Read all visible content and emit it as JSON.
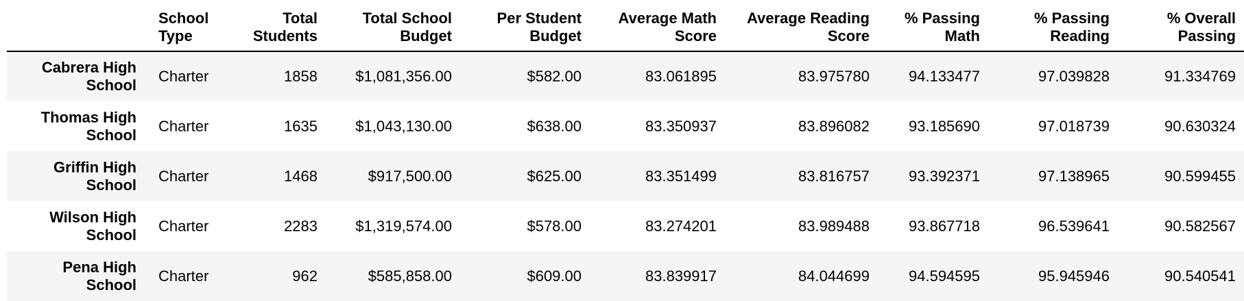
{
  "table": {
    "columns": [
      "School Type",
      "Total Students",
      "Total School Budget",
      "Per Student Budget",
      "Average Math Score",
      "Average Reading Score",
      "% Passing Math",
      "% Passing Reading",
      "% Overall Passing"
    ],
    "rows": [
      {
        "school": "Cabrera High School",
        "school_type": "Charter",
        "total_students": "1858",
        "total_budget": "$1,081,356.00",
        "per_student_budget": "$582.00",
        "avg_math": "83.061895",
        "avg_reading": "83.975780",
        "pct_math": "94.133477",
        "pct_reading": "97.039828",
        "pct_overall": "91.334769"
      },
      {
        "school": "Thomas High School",
        "school_type": "Charter",
        "total_students": "1635",
        "total_budget": "$1,043,130.00",
        "per_student_budget": "$638.00",
        "avg_math": "83.350937",
        "avg_reading": "83.896082",
        "pct_math": "93.185690",
        "pct_reading": "97.018739",
        "pct_overall": "90.630324"
      },
      {
        "school": "Griffin High School",
        "school_type": "Charter",
        "total_students": "1468",
        "total_budget": "$917,500.00",
        "per_student_budget": "$625.00",
        "avg_math": "83.351499",
        "avg_reading": "83.816757",
        "pct_math": "93.392371",
        "pct_reading": "97.138965",
        "pct_overall": "90.599455"
      },
      {
        "school": "Wilson High School",
        "school_type": "Charter",
        "total_students": "2283",
        "total_budget": "$1,319,574.00",
        "per_student_budget": "$578.00",
        "avg_math": "83.274201",
        "avg_reading": "83.989488",
        "pct_math": "93.867718",
        "pct_reading": "96.539641",
        "pct_overall": "90.582567"
      },
      {
        "school": "Pena High School",
        "school_type": "Charter",
        "total_students": "962",
        "total_budget": "$585,858.00",
        "per_student_budget": "$609.00",
        "avg_math": "83.839917",
        "avg_reading": "84.044699",
        "pct_math": "94.594595",
        "pct_reading": "95.945946",
        "pct_overall": "90.540541"
      }
    ]
  }
}
